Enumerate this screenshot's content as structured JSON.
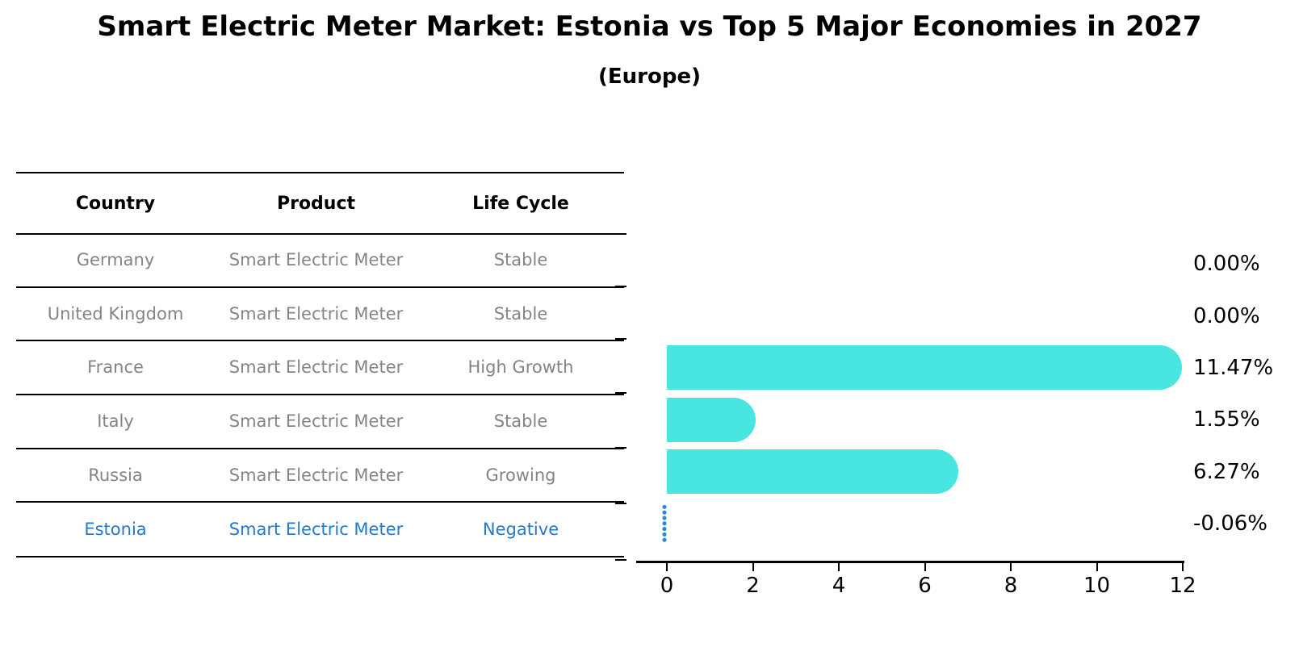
{
  "title": "Smart Electric Meter Market: Estonia vs Top 5 Major Economies in 2027",
  "subtitle": "(Europe)",
  "table": {
    "headers": [
      "Country",
      "Product",
      "Life Cycle"
    ],
    "rows": [
      {
        "country": "Germany",
        "product": "Smart Electric Meter",
        "life_cycle": "Stable",
        "highlight": false
      },
      {
        "country": "United Kingdom",
        "product": "Smart Electric Meter",
        "life_cycle": "Stable",
        "highlight": false
      },
      {
        "country": "France",
        "product": "Smart Electric Meter",
        "life_cycle": "High Growth",
        "highlight": false
      },
      {
        "country": "Italy",
        "product": "Smart Electric Meter",
        "life_cycle": "Stable",
        "highlight": false
      },
      {
        "country": "Russia",
        "product": "Smart Electric Meter",
        "life_cycle": "Growing",
        "highlight": false
      },
      {
        "country": "Estonia",
        "product": "Smart Electric Meter",
        "life_cycle": "Negative",
        "highlight": true
      }
    ]
  },
  "chart_data": {
    "type": "bar",
    "orientation": "horizontal",
    "title": "Smart Electric Meter Market: Estonia vs Top 5 Major Economies in 2027 (Europe)",
    "categories": [
      "Germany",
      "United Kingdom",
      "France",
      "Italy",
      "Russia",
      "Estonia"
    ],
    "values": [
      0.0,
      0.0,
      11.47,
      1.55,
      6.27,
      -0.06
    ],
    "value_labels": [
      "0.00%",
      "0.00%",
      "11.47%",
      "1.55%",
      "6.27%",
      "-0.06%"
    ],
    "unit": "%",
    "x_ticks": [
      0,
      2,
      4,
      6,
      8,
      10,
      12
    ],
    "xlim": [
      -0.7,
      12
    ],
    "grid": false,
    "legend": "none",
    "bar_color": "#48e5e1",
    "highlight_color": "#2878c8",
    "marker_color": "#2b87d8",
    "text_color": "#000000",
    "row_text_color": "#848484"
  }
}
